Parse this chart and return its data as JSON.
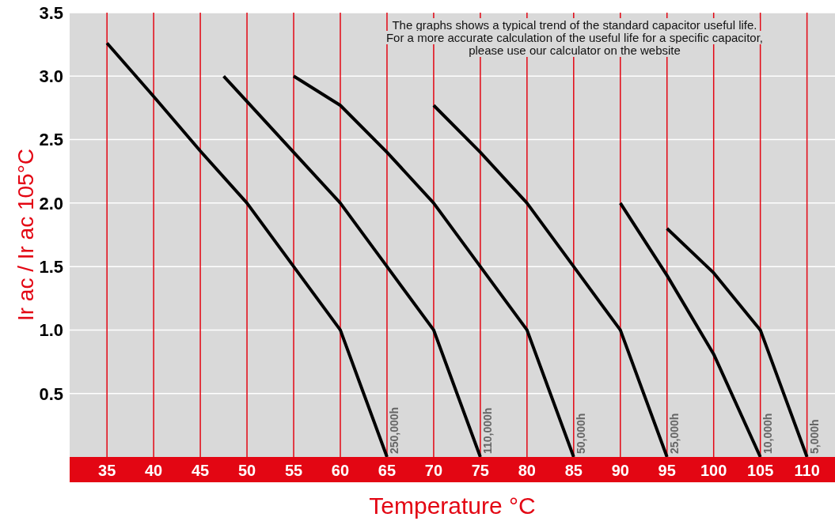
{
  "chart_data": {
    "type": "line",
    "xlabel": "Temperature °C",
    "ylabel": "Ir ac / Ir ac 105°C",
    "annotations": [
      "The graphs shows a typical trend of the standard capacitor useful life.",
      "For a more accurate calculation of the useful life for a specific capacitor,",
      "please use our calculator on the website"
    ],
    "xlim": [
      31,
      113
    ],
    "xticks": [
      35,
      40,
      45,
      50,
      55,
      60,
      65,
      70,
      75,
      80,
      85,
      90,
      95,
      100,
      105,
      110
    ],
    "ylim": [
      0,
      3.5
    ],
    "yticks": [
      {
        "value": 0.5,
        "label": "0.5"
      },
      {
        "value": 1,
        "label": "1.0"
      },
      {
        "value": 1.5,
        "label": "1.5"
      },
      {
        "value": 2,
        "label": "2.0"
      },
      {
        "value": 2.5,
        "label": "2.5"
      },
      {
        "value": 3,
        "label": "3.0"
      },
      {
        "value": 3.5,
        "label": "3.5"
      }
    ],
    "grid": true,
    "marker": "none",
    "line_style": "solid",
    "series": [
      {
        "name": "250,000h",
        "color": "#000000",
        "x": [
          35,
          40,
          45,
          50,
          55,
          60,
          62.5,
          65
        ],
        "values": [
          3.26,
          2.84,
          2.41,
          2.0,
          1.5,
          1.0,
          0.5,
          0
        ]
      },
      {
        "name": "110,000h",
        "color": "#000000",
        "x": [
          47.5,
          50,
          55,
          60,
          65,
          70,
          72.5,
          75
        ],
        "values": [
          3.0,
          2.8,
          2.4,
          2.0,
          1.5,
          1.0,
          0.5,
          0
        ]
      },
      {
        "name": "50,000h",
        "color": "#000000",
        "x": [
          55,
          60,
          65,
          70,
          75,
          80,
          82.5,
          85
        ],
        "values": [
          3.0,
          2.77,
          2.4,
          2.0,
          1.5,
          1.0,
          0.5,
          0
        ]
      },
      {
        "name": "25,000h",
        "color": "#000000",
        "x": [
          70,
          75,
          80,
          85,
          90,
          92.5,
          95
        ],
        "values": [
          2.77,
          2.4,
          2.0,
          1.5,
          1.0,
          0.5,
          0
        ]
      },
      {
        "name": "10,000h",
        "color": "#000000",
        "x": [
          90,
          95,
          100,
          105
        ],
        "values": [
          2.0,
          1.43,
          0.81,
          0
        ]
      },
      {
        "name": "5,000h",
        "color": "#000000",
        "x": [
          95,
          100,
          105,
          110
        ],
        "values": [
          1.8,
          1.45,
          1.0,
          0
        ]
      }
    ]
  }
}
